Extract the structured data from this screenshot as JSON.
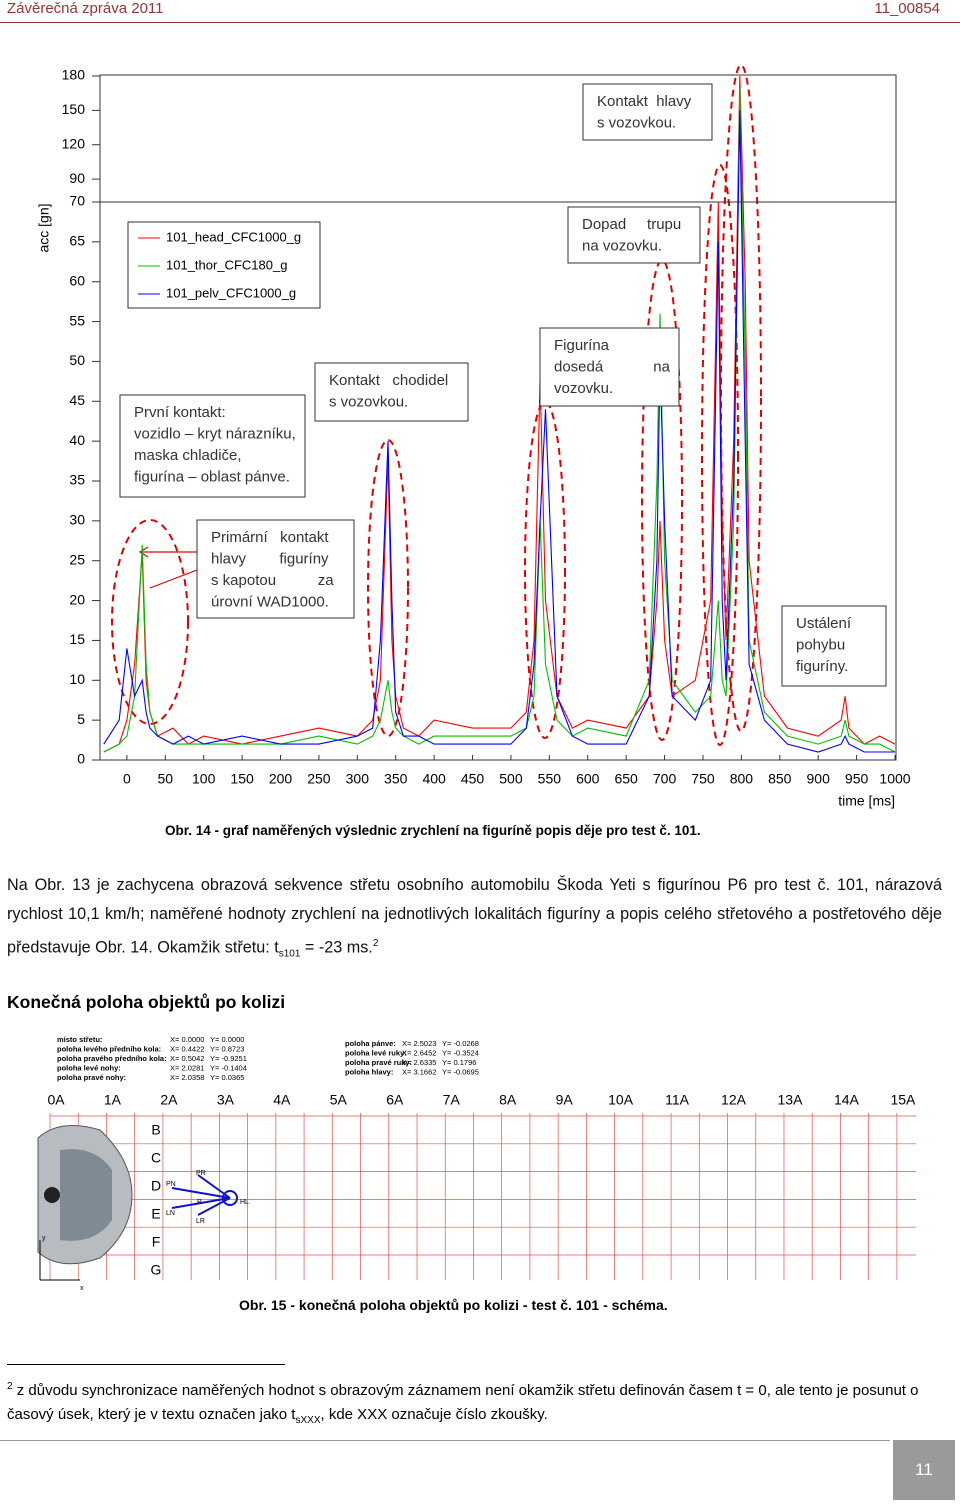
{
  "header": {
    "left": "Závěrečná zpráva 2011",
    "right": "11_00854"
  },
  "chart_data": {
    "type": "line",
    "y_label": "acc [gn]",
    "x_label": "time [ms]",
    "x": [
      -30,
      -10,
      0,
      10,
      20,
      25,
      30,
      40,
      60,
      80,
      100,
      150,
      200,
      250,
      300,
      320,
      330,
      340,
      345,
      350,
      360,
      380,
      400,
      450,
      500,
      520,
      530,
      538,
      545,
      560,
      580,
      600,
      650,
      680,
      690,
      694,
      700,
      710,
      740,
      760,
      770,
      775,
      780,
      790,
      798,
      805,
      810,
      830,
      860,
      900,
      930,
      935,
      940,
      960,
      980,
      1000
    ],
    "series": [
      {
        "name": "101_head_CFC1000_g",
        "color": "#ff0000",
        "values": [
          1,
          2,
          5,
          12,
          26,
          10,
          6,
          3,
          4,
          2,
          3,
          2,
          3,
          4,
          3,
          5,
          10,
          38,
          15,
          8,
          4,
          3,
          5,
          4,
          4,
          6,
          15,
          48,
          20,
          8,
          4,
          5,
          4,
          8,
          20,
          30,
          15,
          8,
          10,
          20,
          70,
          30,
          15,
          40,
          180,
          60,
          25,
          8,
          4,
          3,
          5,
          8,
          4,
          2,
          3,
          2
        ]
      },
      {
        "name": "101_thor_CFC180_g",
        "color": "#00c000",
        "values": [
          1,
          2,
          3,
          8,
          27,
          12,
          6,
          3,
          2,
          2,
          2,
          2,
          2,
          3,
          2,
          3,
          5,
          10,
          6,
          4,
          3,
          2,
          3,
          3,
          3,
          4,
          8,
          30,
          12,
          5,
          3,
          4,
          3,
          10,
          35,
          56,
          25,
          10,
          6,
          8,
          20,
          10,
          8,
          30,
          170,
          50,
          15,
          6,
          3,
          2,
          3,
          5,
          3,
          2,
          2,
          1
        ]
      },
      {
        "name": "101_pelv_CFC1000_g",
        "color": "#0000ff",
        "values": [
          2,
          5,
          14,
          8,
          10,
          6,
          4,
          3,
          2,
          3,
          2,
          3,
          2,
          2,
          3,
          4,
          15,
          40,
          20,
          6,
          3,
          3,
          2,
          2,
          2,
          4,
          12,
          30,
          44,
          8,
          3,
          2,
          2,
          8,
          25,
          50,
          30,
          8,
          5,
          10,
          65,
          20,
          10,
          35,
          150,
          40,
          12,
          5,
          2,
          1,
          2,
          3,
          2,
          1,
          1,
          1
        ]
      }
    ],
    "xlim": [
      -35,
      1000
    ],
    "xticks": [
      0,
      50,
      100,
      150,
      200,
      250,
      300,
      350,
      400,
      450,
      500,
      550,
      600,
      650,
      700,
      750,
      800,
      850,
      900,
      950,
      1000
    ],
    "ylim": [
      0,
      180
    ],
    "yticks": [
      0,
      5,
      10,
      15,
      20,
      25,
      30,
      35,
      40,
      45,
      50,
      55,
      60,
      65,
      70,
      90,
      120,
      150,
      180
    ],
    "annotations": [
      {
        "lines": [
          "Kontakt  hlavy",
          "s vozovkou."
        ]
      },
      {
        "lines": [
          "Dopad     trupu",
          "na vozovku."
        ]
      },
      {
        "lines": [
          "Figurína",
          "dosedá            na",
          "vozovku."
        ]
      },
      {
        "lines": [
          "Kontakt   chodidel",
          "s vozovkou."
        ]
      },
      {
        "lines": [
          "První kontakt:",
          "vozidlo – kryt nárazníku,",
          "maska chladiče,",
          "figurína – oblast pánve."
        ]
      },
      {
        "lines": [
          "Primární   kontakt",
          "hlavy        figuríny",
          "s kapotou          za",
          "úrovní WAD1000."
        ]
      },
      {
        "lines": [
          "Ustálení",
          "pohybu",
          "figuríny."
        ]
      }
    ]
  },
  "caption_14": "Obr. 14 - graf naměřených výslednic zrychlení na figuríně  popis děje pro test č. 101.",
  "paragraph": {
    "text": "Na Obr. 13 je zachycena obrazová sekvence střetu osobního automobilu Škoda Yeti s figurínou P6 pro test č. 101, nárazová rychlost 10,1 km/h; naměřené hodnoty zrychlení na jednotlivých lokalitách figuríny a popis celého střetového a postřetového děje představuje Obr. 14. Okamžik střetu: t",
    "subscript": "s101",
    "text_after": " = -23 ms.",
    "footnote_ref": "2"
  },
  "heading": "Konečná poloha objektů po kolizi",
  "schematic": {
    "columns": [
      "0A",
      "1A",
      "2A",
      "3A",
      "4A",
      "5A",
      "6A",
      "7A",
      "8A",
      "9A",
      "10A",
      "11A",
      "12A",
      "13A",
      "14A",
      "15A"
    ],
    "rows": [
      "B",
      "C",
      "D",
      "E",
      "F",
      "G"
    ],
    "measurements_left": [
      [
        "místo střetu:",
        "X= 0.0000",
        "Y= 0.0000"
      ],
      [
        "poloha levého předního kola:",
        "X= 0.4422",
        "Y= 0.8723"
      ],
      [
        "poloha pravého předního kola:",
        "X= 0.5042",
        "Y= -0.9251"
      ],
      [
        "poloha levé nohy:",
        "X= 2.0281",
        "Y= -0.1404"
      ],
      [
        "poloha pravé nohy:",
        "X= 2.0358",
        "Y= 0.0365"
      ]
    ],
    "measurements_right": [
      [
        "poloha pánve:",
        "X= 2.5023",
        "Y= -0.0268"
      ],
      [
        "poloha levé ruky:",
        "X= 2.6452",
        "Y= -0.3524"
      ],
      [
        "poloha pravé ruky:",
        "X= 2.6335",
        "Y= 0.1796"
      ],
      [
        "poloha hlavy:",
        "X= 3.1662",
        "Y= -0.0695"
      ]
    ],
    "labels": [
      "PN",
      "LN",
      "PR",
      "LR",
      "P",
      "HL",
      "x",
      "y"
    ]
  },
  "caption_15": "Obr. 15 - konečná poloha objektů po kolizi - test č. 101 - schéma.",
  "footnote": {
    "number": "2",
    "text": "z důvodu synchronizace naměřených hodnot s obrazovým záznamem není okamžik střetu definován časem t = 0, ale tento je posunut o časový úsek, který je v textu označen jako t",
    "subscript": "sXXX",
    "text_after": ", kde XXX označuje číslo zkoušky."
  },
  "page_number": "11"
}
